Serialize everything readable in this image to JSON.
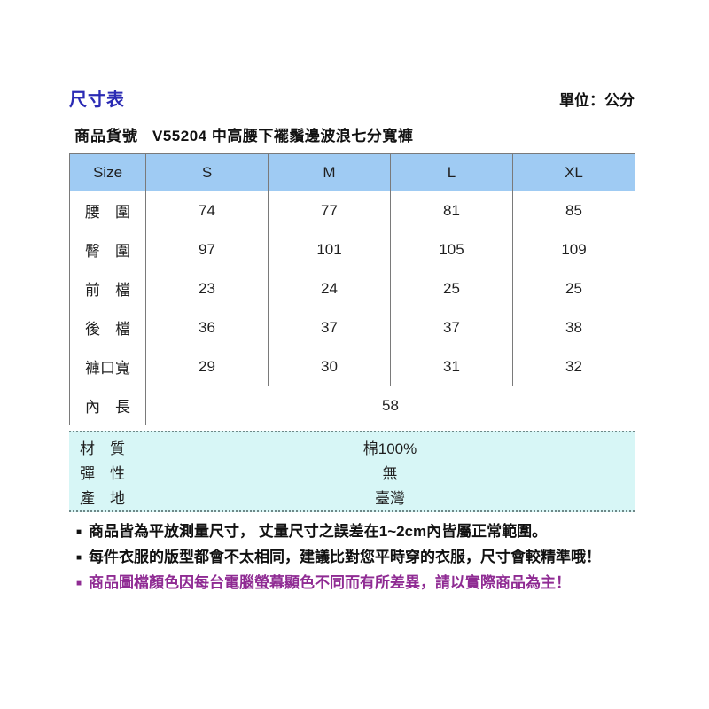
{
  "page": {
    "title": "尺寸表",
    "unit_label": "單位：公分"
  },
  "product": {
    "code_label": "商品貨號",
    "code": "V55204",
    "name": "中高腰下襬鬚邊波浪七分寬褲",
    "full_title": "V55204 中高腰下襬鬚邊波浪七分寬褲"
  },
  "size_table": {
    "header": [
      "Size",
      "S",
      "M",
      "L",
      "XL"
    ],
    "rows": [
      {
        "label": "腰　圍",
        "values": [
          "74",
          "77",
          "81",
          "85"
        ]
      },
      {
        "label": "臀　圍",
        "values": [
          "97",
          "101",
          "105",
          "109"
        ]
      },
      {
        "label": "前　檔",
        "values": [
          "23",
          "24",
          "25",
          "25"
        ]
      },
      {
        "label": "後　檔",
        "values": [
          "36",
          "37",
          "37",
          "38"
        ]
      },
      {
        "label": "褲口寬",
        "values": [
          "29",
          "30",
          "31",
          "32"
        ]
      },
      {
        "label": "內　長",
        "value": "58"
      }
    ]
  },
  "info": {
    "rows": [
      {
        "label": "材　質",
        "value": "棉100%"
      },
      {
        "label": "彈　性",
        "value": "無"
      },
      {
        "label": "產　地",
        "value": "臺灣"
      }
    ]
  },
  "notes": {
    "bullet": "■",
    "items": [
      {
        "text": "商品皆為平放測量尺寸， 丈量尺寸之誤差在1~2cm內皆屬正常範圍。"
      },
      {
        "text": "每件衣服的版型都會不太相同，建議比對您平時穿的衣服，尺寸會較精準哦！"
      },
      {
        "text": "商品圖檔顏色因每台電腦螢幕顯色不同而有所差異，請以實際商品為主！"
      }
    ]
  },
  "colors": {
    "title_blue": "#2b2bb4",
    "header_bg": "#9fcbf3",
    "info_bg": "#d7f6f6",
    "note_purple": "#8f2b93",
    "border_inner": "#7a7a7a",
    "border_outer": "#4a4a4a",
    "dotted": "#6e8888",
    "text": "#1f1f1f"
  }
}
